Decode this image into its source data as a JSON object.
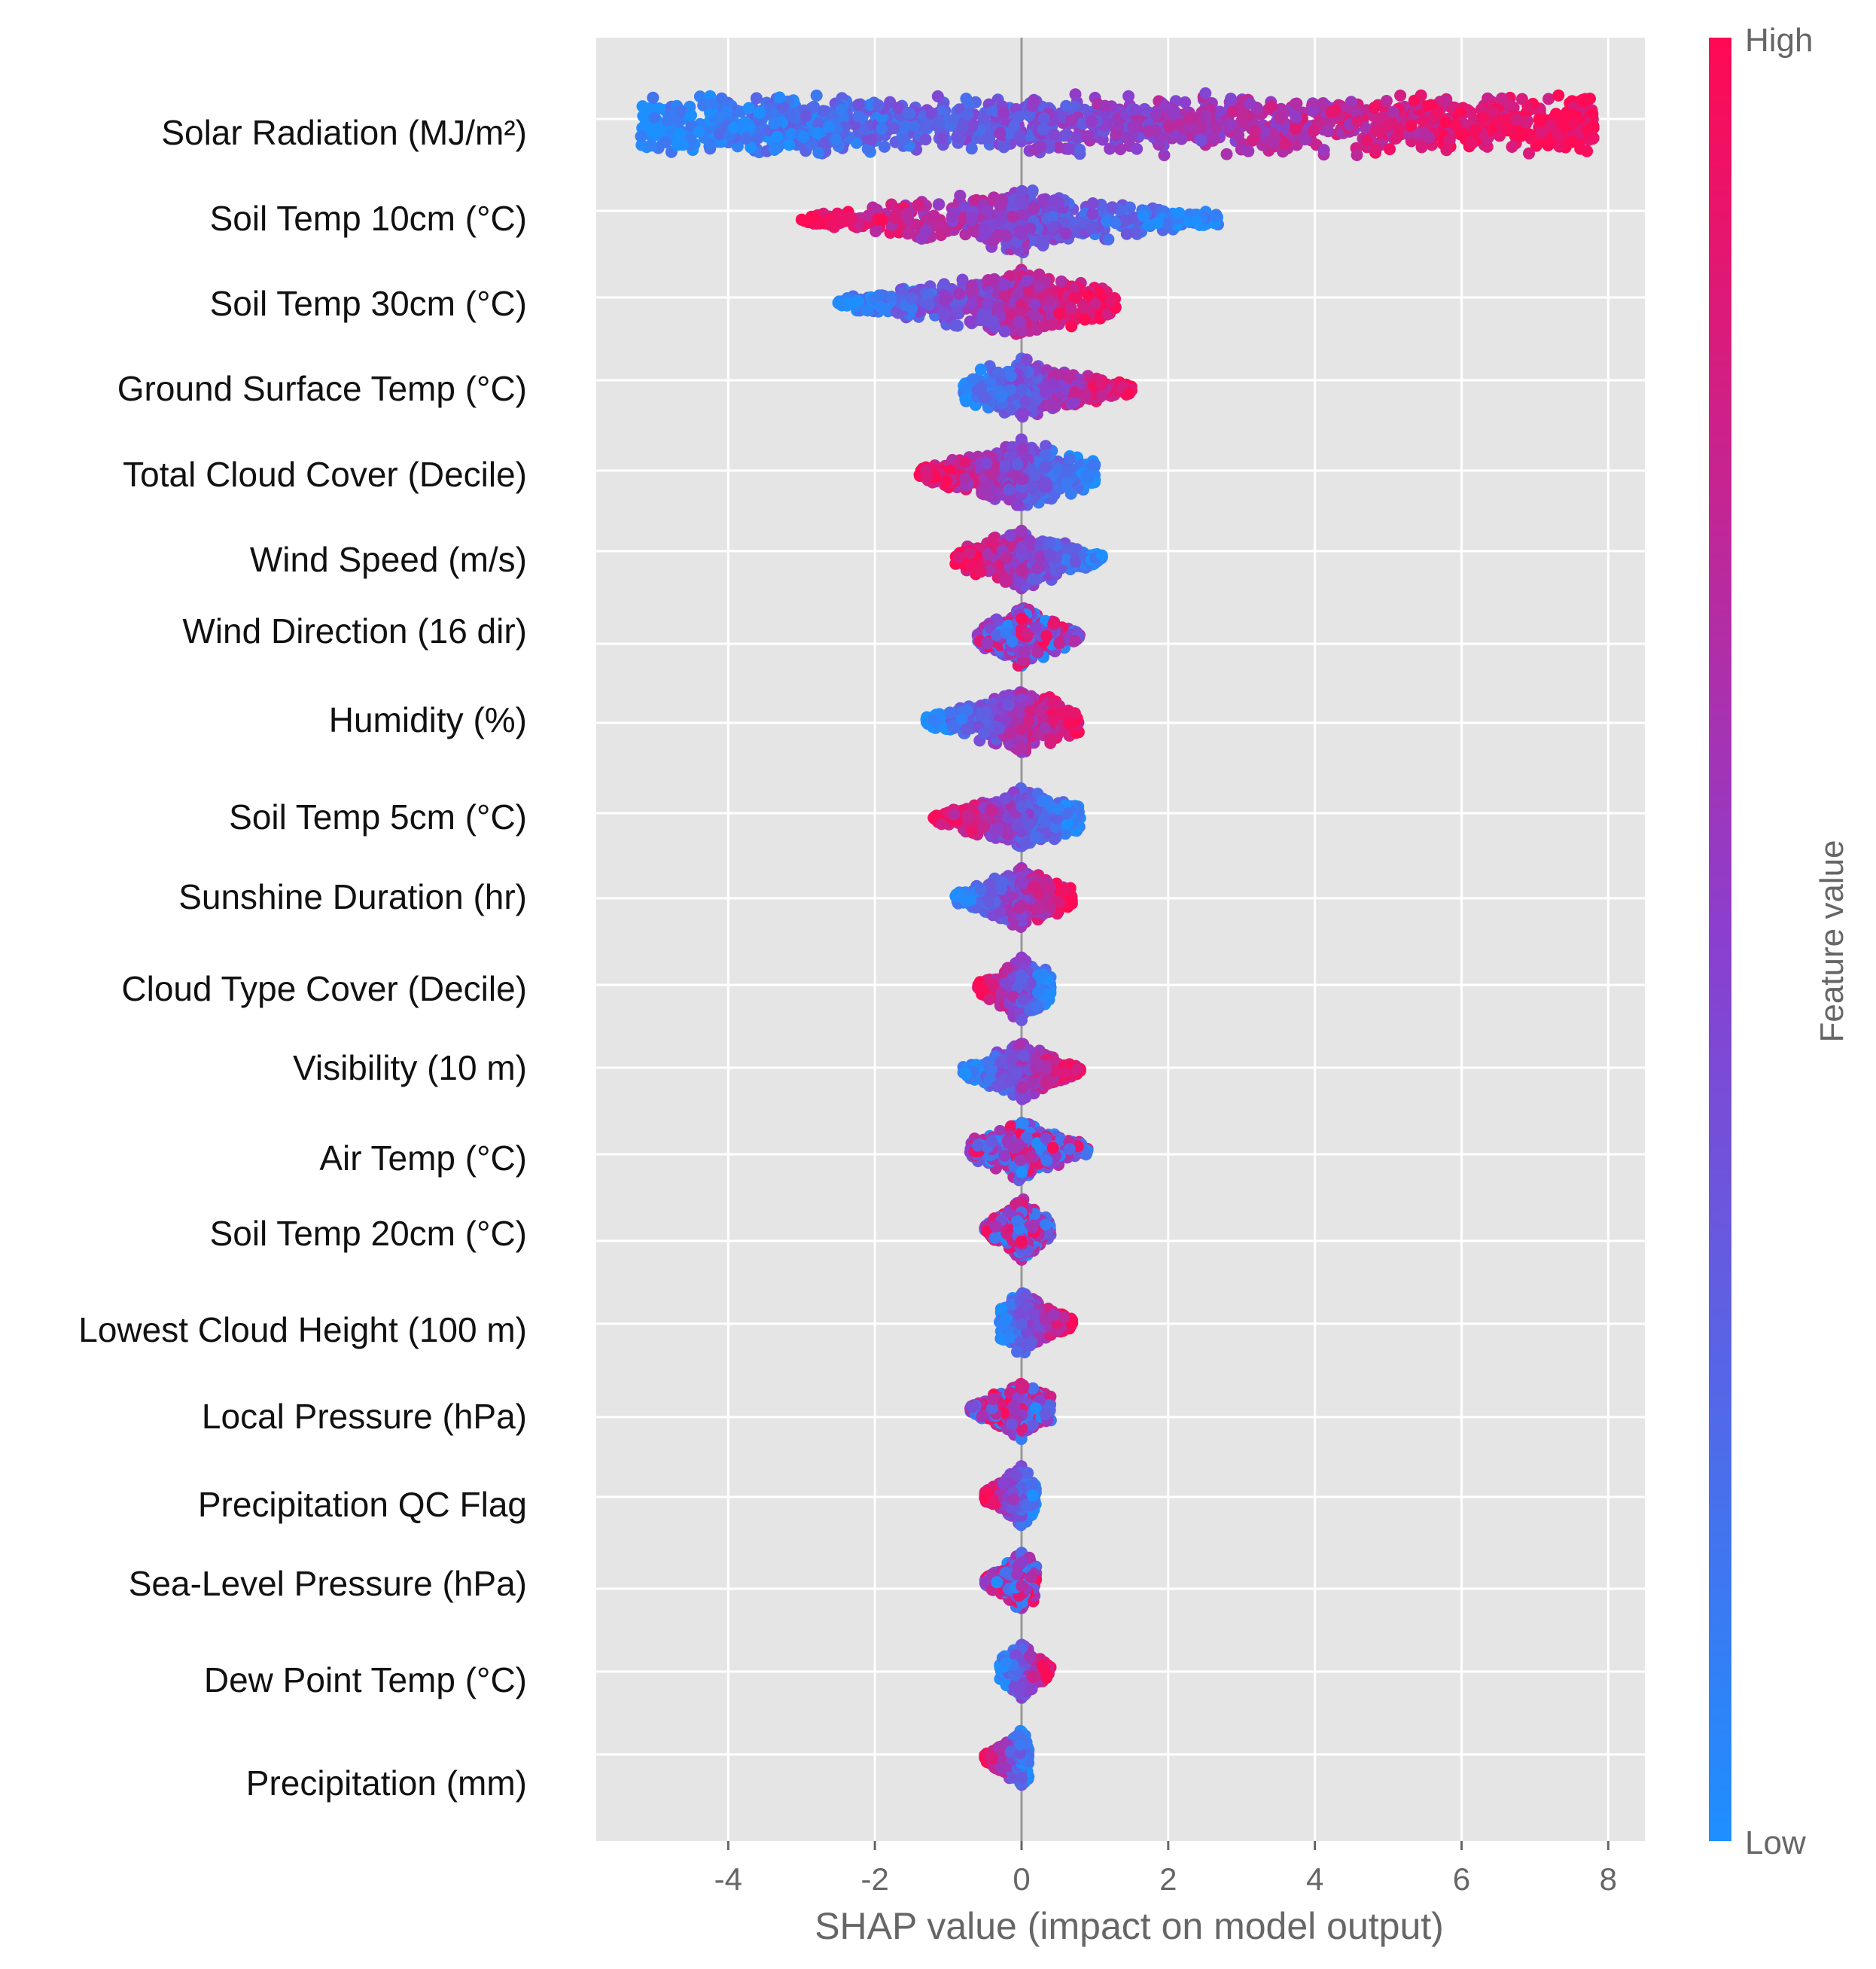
{
  "chart_data": {
    "type": "scatter",
    "subtype": "shap-beeswarm",
    "xlabel": "SHAP value (impact on model output)",
    "xlim": [
      -5.8,
      8.5
    ],
    "xticks": [
      -4,
      -2,
      0,
      2,
      4,
      6,
      8
    ],
    "xtick_labels": [
      "-4",
      "-2",
      "0",
      "2",
      "4",
      "6",
      "8"
    ],
    "colorbar": {
      "label": "Feature value",
      "high_label": "High",
      "low_label": "Low",
      "high_color": "#ff0a54",
      "mid_color": "#8b3fcf",
      "low_color": "#1e8fff"
    },
    "grid": true,
    "features": [
      {
        "name": "Solar Radiation (MJ/m²)",
        "min": -5.2,
        "max": 7.8,
        "spread": 0.45,
        "color_trend": "increasing"
      },
      {
        "name": "Soil Temp 10cm (°C)",
        "min": -3.0,
        "max": 2.7,
        "spread": 0.32,
        "color_trend": "decreasing"
      },
      {
        "name": "Soil Temp 30cm (°C)",
        "min": -2.5,
        "max": 1.3,
        "spread": 0.34,
        "color_trend": "increasing"
      },
      {
        "name": "Ground Surface Temp (°C)",
        "min": -0.8,
        "max": 1.5,
        "spread": 0.3,
        "color_trend": "increasing"
      },
      {
        "name": "Total Cloud Cover (Decile)",
        "min": -1.4,
        "max": 1.0,
        "spread": 0.34,
        "color_trend": "decreasing"
      },
      {
        "name": "Wind Speed (m/s)",
        "min": -0.9,
        "max": 1.1,
        "spread": 0.3,
        "color_trend": "decreasing"
      },
      {
        "name": "Wind Direction (16 dir)",
        "min": -0.6,
        "max": 0.8,
        "spread": 0.3,
        "color_trend": "mixed"
      },
      {
        "name": "Humidity (%)",
        "min": -1.3,
        "max": 0.8,
        "spread": 0.32,
        "color_trend": "increasing"
      },
      {
        "name": "Soil Temp 5cm (°C)",
        "min": -1.2,
        "max": 0.8,
        "spread": 0.3,
        "color_trend": "decreasing"
      },
      {
        "name": "Sunshine Duration (hr)",
        "min": -0.9,
        "max": 0.7,
        "spread": 0.3,
        "color_trend": "increasing"
      },
      {
        "name": "Cloud Type Cover (Decile)",
        "min": -0.6,
        "max": 0.4,
        "spread": 0.32,
        "color_trend": "decreasing"
      },
      {
        "name": "Visibility (10 m)",
        "min": -0.8,
        "max": 0.8,
        "spread": 0.3,
        "color_trend": "increasing"
      },
      {
        "name": "Air Temp (°C)",
        "min": -0.7,
        "max": 0.9,
        "spread": 0.3,
        "color_trend": "mixed"
      },
      {
        "name": "Soil Temp 20cm (°C)",
        "min": -0.5,
        "max": 0.4,
        "spread": 0.3,
        "color_trend": "mixed"
      },
      {
        "name": "Lowest Cloud Height (100 m)",
        "min": -0.3,
        "max": 0.7,
        "spread": 0.3,
        "color_trend": "increasing"
      },
      {
        "name": "Local Pressure (hPa)",
        "min": -0.7,
        "max": 0.4,
        "spread": 0.28,
        "color_trend": "mixed"
      },
      {
        "name": "Precipitation QC Flag",
        "min": -0.5,
        "max": 0.2,
        "spread": 0.3,
        "color_trend": "decreasing"
      },
      {
        "name": "Sea-Level Pressure (hPa)",
        "min": -0.5,
        "max": 0.2,
        "spread": 0.28,
        "color_trend": "mixed"
      },
      {
        "name": "Dew Point Temp (°C)",
        "min": -0.3,
        "max": 0.4,
        "spread": 0.28,
        "color_trend": "increasing"
      },
      {
        "name": "Precipitation (mm)",
        "min": -0.5,
        "max": 0.1,
        "spread": 0.28,
        "color_trend": "decreasing"
      }
    ]
  }
}
